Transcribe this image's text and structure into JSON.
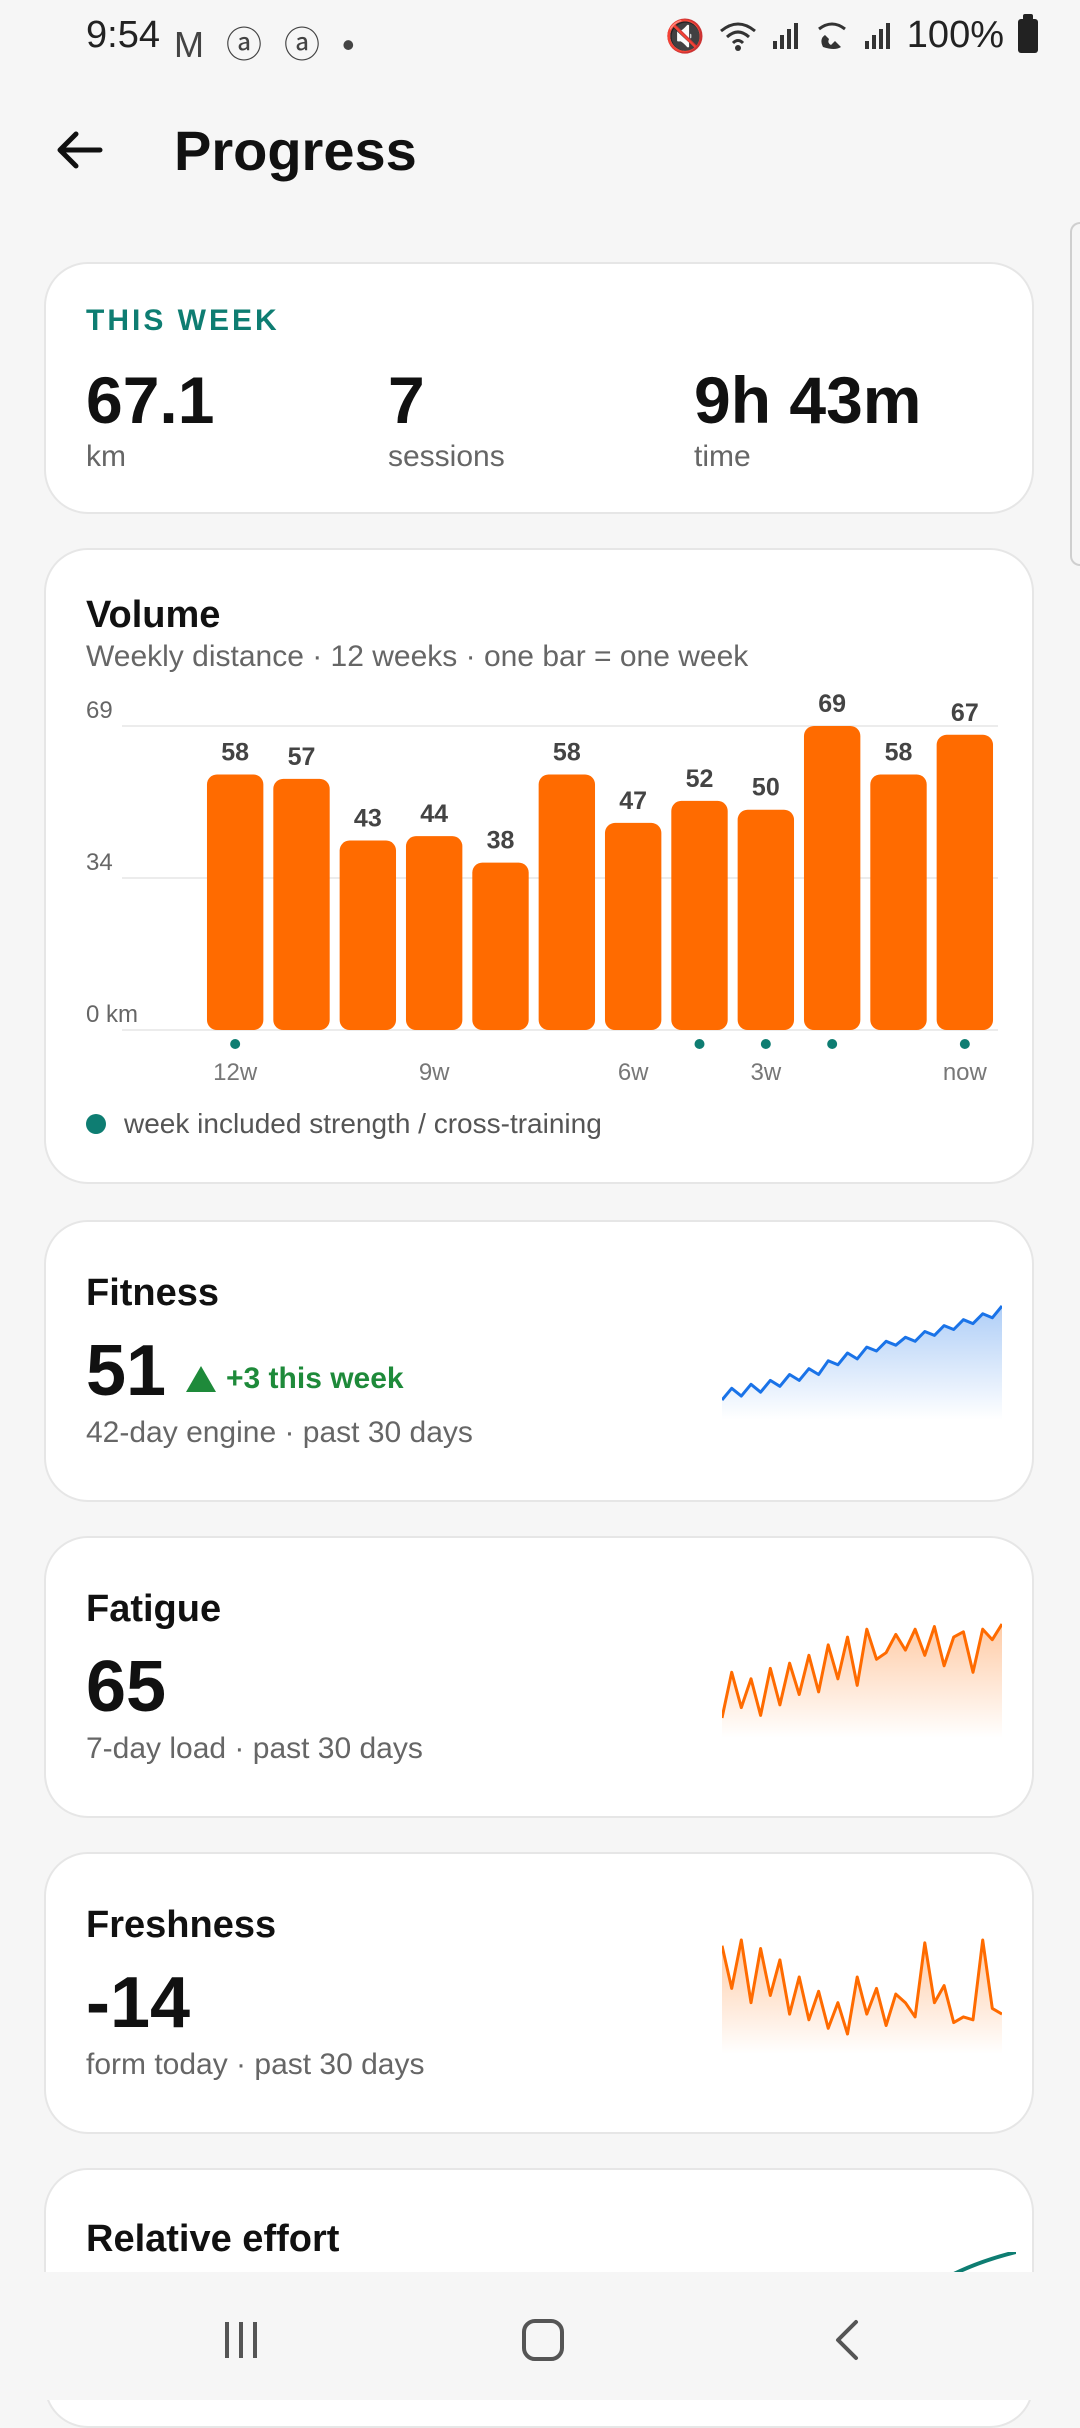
{
  "status": {
    "time": "9:54",
    "left_icons": "M ⓐ ⓐ •",
    "battery": "100%"
  },
  "header": {
    "title": "Progress",
    "back_icon": "arrow-left-icon"
  },
  "this_week": {
    "label": "THIS WEEK",
    "stats": [
      {
        "value": "67.1",
        "unit": "km"
      },
      {
        "value": "7",
        "unit": "sessions"
      },
      {
        "value": "9h 43m",
        "unit": "time"
      }
    ]
  },
  "volume": {
    "title": "Volume",
    "subtitle": "Weekly distance · 12 weeks · one bar = one week",
    "legend": "week included strength / cross-training",
    "chart_data": {
      "type": "bar",
      "values": [
        58,
        57,
        43,
        44,
        38,
        58,
        47,
        52,
        50,
        69,
        58,
        67
      ],
      "value_labels": [
        "58",
        "57",
        "43",
        "44",
        "38",
        "58",
        "47",
        "52",
        "50",
        "69",
        "58",
        "67"
      ],
      "cross_training": [
        true,
        false,
        false,
        false,
        false,
        false,
        false,
        true,
        true,
        true,
        false,
        true
      ],
      "y_ticks": [
        "69",
        "34",
        "0 km"
      ],
      "ylim": [
        0,
        69
      ],
      "x_tick_labels": [
        "12w",
        "9w",
        "6w",
        "3w",
        "now"
      ],
      "x_tick_index": [
        0,
        3,
        6,
        8,
        11
      ],
      "bar_color": "#ff6b00",
      "dot_color": "#0e7d72"
    }
  },
  "fitness": {
    "title": "Fitness",
    "value": "51",
    "delta": "+3 this week",
    "subtitle": "42-day engine · past 30 days",
    "color": "#1a73e8",
    "series": [
      20,
      26,
      22,
      28,
      24,
      30,
      27,
      33,
      30,
      36,
      33,
      40,
      38,
      44,
      41,
      47,
      45,
      50,
      48,
      52,
      50,
      55,
      53,
      58,
      56,
      61,
      59,
      64,
      62,
      68
    ]
  },
  "fatigue": {
    "title": "Fatigue",
    "value": "65",
    "subtitle": "7-day load · past 30 days",
    "color": "#ff6b00",
    "series": [
      10,
      45,
      18,
      40,
      12,
      48,
      20,
      52,
      28,
      58,
      30,
      66,
      40,
      72,
      35,
      78,
      55,
      60,
      74,
      62,
      78,
      58,
      80,
      50,
      72,
      76,
      45,
      78,
      70,
      82
    ]
  },
  "freshness": {
    "title": "Freshness",
    "value": "-14",
    "subtitle": "form today · past 30 days",
    "color": "#ff6b00",
    "series": [
      70,
      40,
      74,
      30,
      68,
      35,
      60,
      22,
      48,
      18,
      38,
      12,
      30,
      8,
      48,
      22,
      40,
      14,
      36,
      30,
      20,
      72,
      30,
      42,
      16,
      20,
      18,
      74,
      26,
      22
    ]
  },
  "relative_effort": {
    "title": "Relative effort"
  },
  "nav": {
    "recents_icon": "recents-icon",
    "home_icon": "home-icon",
    "back_icon": "back-chevron-icon"
  }
}
